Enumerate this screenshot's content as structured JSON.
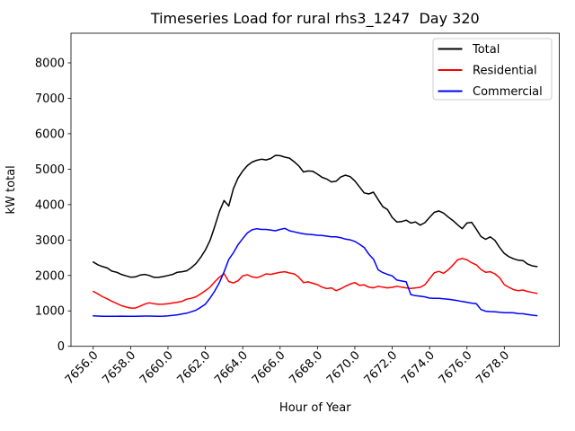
{
  "title": "Timeseries Load for rural rhs3_1247  Day 320",
  "xlabel": "Hour of Year",
  "ylabel": "kW total",
  "legend": {
    "position": "upper right",
    "items": [
      {
        "label": "Total",
        "color": "#000000"
      },
      {
        "label": "Residential",
        "color": "#ff0000"
      },
      {
        "label": "Commercial",
        "color": "#0000ff"
      }
    ]
  },
  "chart_data": {
    "type": "line",
    "title": "Timeseries Load for rural rhs3_1247  Day 320",
    "xlabel": "Hour of Year",
    "ylabel": "kW total",
    "grid": false,
    "xlim": [
      7654.81,
      7680.94
    ],
    "ylim": [
      0,
      8836
    ],
    "xticks": [
      7656,
      7658,
      7660,
      7662,
      7664,
      7666,
      7668,
      7670,
      7672,
      7674,
      7676,
      7678
    ],
    "xtick_labels": [
      "7656.0",
      "7658.0",
      "7660.0",
      "7662.0",
      "7664.0",
      "7666.0",
      "7668.0",
      "7670.0",
      "7672.0",
      "7674.0",
      "7676.0",
      "7678.0"
    ],
    "yticks": [
      0,
      1000,
      2000,
      3000,
      4000,
      5000,
      6000,
      7000,
      8000
    ],
    "ytick_labels": [
      "0",
      "1000",
      "2000",
      "3000",
      "4000",
      "5000",
      "6000",
      "7000",
      "8000"
    ],
    "x": [
      7656.0,
      7656.25,
      7656.5,
      7656.75,
      7657.0,
      7657.25,
      7657.5,
      7657.75,
      7658.0,
      7658.25,
      7658.5,
      7658.75,
      7659.0,
      7659.25,
      7659.5,
      7659.75,
      7660.0,
      7660.25,
      7660.5,
      7660.75,
      7661.0,
      7661.25,
      7661.5,
      7661.75,
      7662.0,
      7662.25,
      7662.5,
      7662.75,
      7663.0,
      7663.25,
      7663.5,
      7663.75,
      7664.0,
      7664.25,
      7664.5,
      7664.75,
      7665.0,
      7665.25,
      7665.5,
      7665.75,
      7666.0,
      7666.25,
      7666.5,
      7666.75,
      7667.0,
      7667.25,
      7667.5,
      7667.75,
      7668.0,
      7668.25,
      7668.5,
      7668.75,
      7669.0,
      7669.25,
      7669.5,
      7669.75,
      7670.0,
      7670.25,
      7670.5,
      7670.75,
      7671.0,
      7671.25,
      7671.5,
      7671.75,
      7672.0,
      7672.25,
      7672.5,
      7672.75,
      7673.0,
      7673.25,
      7673.5,
      7673.75,
      7674.0,
      7674.25,
      7674.5,
      7674.75,
      7675.0,
      7675.25,
      7675.5,
      7675.75,
      7676.0,
      7676.25,
      7676.5,
      7676.75,
      7677.0,
      7677.25,
      7677.5,
      7677.75,
      7678.0,
      7678.25,
      7678.5,
      7678.75,
      7679.0,
      7679.25,
      7679.5,
      7679.75
    ],
    "series": [
      {
        "name": "Total",
        "color": "#000000",
        "values": [
          2380,
          2300,
          2250,
          2210,
          2120,
          2090,
          2030,
          1990,
          1950,
          1960,
          2010,
          2030,
          2000,
          1945,
          1945,
          1970,
          2000,
          2030,
          2090,
          2105,
          2130,
          2220,
          2340,
          2510,
          2720,
          2990,
          3380,
          3800,
          4115,
          3960,
          4450,
          4750,
          4950,
          5100,
          5200,
          5250,
          5280,
          5260,
          5300,
          5390,
          5380,
          5340,
          5310,
          5210,
          5090,
          4920,
          4950,
          4940,
          4860,
          4770,
          4720,
          4640,
          4660,
          4780,
          4830,
          4790,
          4670,
          4500,
          4330,
          4300,
          4350,
          4140,
          3940,
          3860,
          3640,
          3510,
          3520,
          3560,
          3480,
          3510,
          3420,
          3490,
          3640,
          3780,
          3820,
          3760,
          3650,
          3550,
          3430,
          3320,
          3480,
          3500,
          3310,
          3100,
          3020,
          3090,
          2990,
          2790,
          2620,
          2530,
          2470,
          2430,
          2420,
          2320,
          2270,
          2250
        ]
      },
      {
        "name": "Residential",
        "color": "#ff0000",
        "values": [
          1550,
          1480,
          1400,
          1340,
          1270,
          1210,
          1150,
          1110,
          1080,
          1080,
          1130,
          1190,
          1230,
          1200,
          1185,
          1190,
          1200,
          1225,
          1245,
          1270,
          1330,
          1355,
          1400,
          1480,
          1570,
          1670,
          1820,
          1950,
          2050,
          1830,
          1790,
          1850,
          1990,
          2020,
          1960,
          1935,
          1985,
          2045,
          2030,
          2060,
          2090,
          2105,
          2070,
          2045,
          1950,
          1800,
          1820,
          1780,
          1740,
          1670,
          1630,
          1650,
          1570,
          1625,
          1695,
          1755,
          1800,
          1720,
          1735,
          1670,
          1650,
          1695,
          1670,
          1650,
          1665,
          1695,
          1670,
          1650,
          1635,
          1650,
          1665,
          1735,
          1905,
          2075,
          2115,
          2060,
          2160,
          2290,
          2440,
          2480,
          2440,
          2360,
          2300,
          2170,
          2090,
          2105,
          2045,
          1935,
          1740,
          1665,
          1600,
          1570,
          1590,
          1545,
          1520,
          1495
        ]
      },
      {
        "name": "Commercial",
        "color": "#0000ff",
        "values": [
          860,
          855,
          850,
          850,
          848,
          850,
          852,
          850,
          848,
          850,
          852,
          855,
          855,
          852,
          850,
          852,
          858,
          872,
          890,
          915,
          935,
          975,
          1020,
          1100,
          1190,
          1360,
          1560,
          1800,
          2100,
          2450,
          2640,
          2870,
          3040,
          3200,
          3290,
          3320,
          3300,
          3300,
          3280,
          3260,
          3300,
          3330,
          3260,
          3230,
          3200,
          3175,
          3160,
          3150,
          3135,
          3130,
          3110,
          3090,
          3090,
          3065,
          3025,
          3005,
          2960,
          2880,
          2790,
          2600,
          2460,
          2160,
          2080,
          2030,
          1990,
          1870,
          1845,
          1820,
          1460,
          1430,
          1415,
          1395,
          1360,
          1355,
          1355,
          1340,
          1330,
          1310,
          1290,
          1265,
          1245,
          1220,
          1205,
          1040,
          990,
          980,
          975,
          960,
          950,
          950,
          945,
          925,
          920,
          900,
          880,
          865
        ]
      }
    ]
  }
}
